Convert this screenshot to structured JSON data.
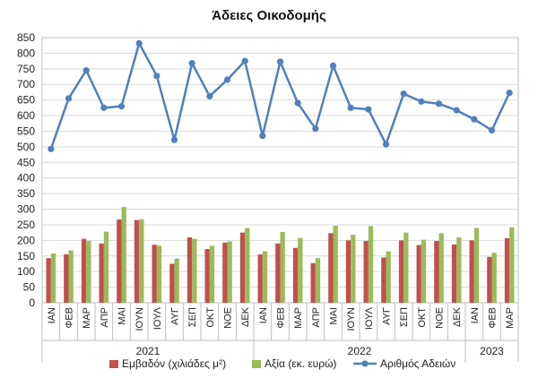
{
  "chart_data": {
    "type": "bar",
    "title": "Άδειες Οικοδομής",
    "ylim": [
      0,
      850
    ],
    "yticks": [
      0,
      50,
      100,
      150,
      200,
      250,
      300,
      350,
      400,
      450,
      500,
      550,
      600,
      650,
      700,
      750,
      800,
      850
    ],
    "grid": true,
    "legend_position": "bottom",
    "categories": [
      "ΙΑΝ",
      "ΦΕΒ",
      "ΜΑΡ",
      "ΑΠΡ",
      "ΜΑΙ",
      "ΙΟΥΝ",
      "ΙΟΥΛ",
      "ΑΥΓ",
      "ΣΕΠ",
      "ΟΚΤ",
      "ΝΟΕ",
      "ΔΕΚ",
      "ΙΑΝ",
      "ΦΕΒ",
      "ΜΑΡ",
      "ΑΠΡ",
      "ΜΑΙ",
      "ΙΟΥΝ",
      "ΙΟΥΛ",
      "ΑΥΓ",
      "ΣΕΠ",
      "ΟΚΤ",
      "ΝΟΕ",
      "ΔΕΚ",
      "ΙΑΝ",
      "ΦΕΒ",
      "ΜΑΡ"
    ],
    "groups": [
      {
        "label": "2021",
        "start": 0,
        "end": 11
      },
      {
        "label": "2022",
        "start": 12,
        "end": 23
      },
      {
        "label": "2023",
        "start": 24,
        "end": 26
      }
    ],
    "series": [
      {
        "name": "Εμβαδόν (χιλιάδες μ²)",
        "kind": "bar",
        "color": "#c0504d",
        "values": [
          143,
          155,
          205,
          190,
          267,
          265,
          186,
          125,
          210,
          172,
          193,
          225,
          155,
          190,
          176,
          127,
          223,
          200,
          198,
          145,
          200,
          185,
          198,
          187,
          200,
          147,
          207
        ]
      },
      {
        "name": "Αξία (εκ. ευρώ)",
        "kind": "bar",
        "color": "#9bbb59",
        "values": [
          158,
          168,
          198,
          228,
          307,
          268,
          183,
          142,
          205,
          183,
          197,
          240,
          165,
          227,
          208,
          143,
          247,
          218,
          246,
          165,
          225,
          202,
          223,
          210,
          240,
          160,
          242
        ]
      },
      {
        "name": "Αριθμός Αδειών",
        "kind": "line",
        "color": "#4f81bd",
        "values": [
          493,
          655,
          745,
          625,
          630,
          832,
          727,
          522,
          768,
          662,
          715,
          775,
          535,
          773,
          640,
          558,
          760,
          625,
          620,
          508,
          670,
          645,
          638,
          617,
          588,
          553,
          673
        ]
      }
    ]
  }
}
